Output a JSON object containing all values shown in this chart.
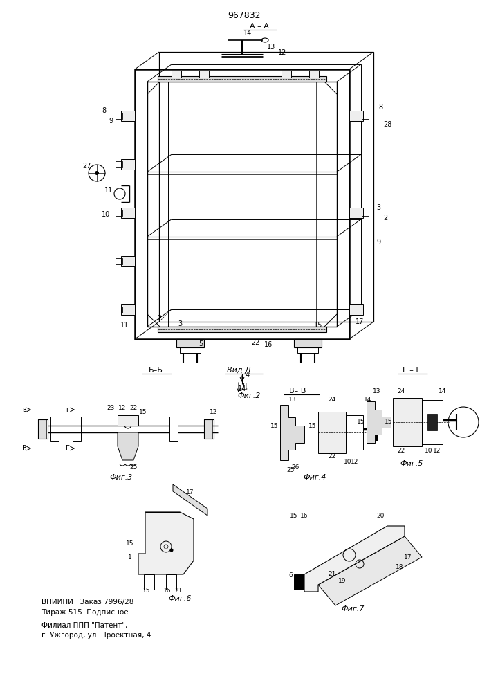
{
  "title": "967832",
  "bg_color": "#ffffff",
  "line_color": "#000000",
  "fig_width": 7.07,
  "fig_height": 10.0,
  "dpi": 100,
  "label_A_A": "A – A",
  "label_B_B": "Б–Б",
  "label_V_V": "В– В",
  "label_G_G": "Г – Г",
  "label_vid_D": "Вид Д",
  "fig2_label": "Фиг.2",
  "fig3_label": "Фиг.3",
  "fig4_label": "Фиг.4",
  "fig5_label": "Фиг.5",
  "fig6_label": "Фиг.6",
  "fig7_label": "Фиг.7",
  "footer_line1": "ВНИИПИ   Заказ 7996/28",
  "footer_line2": "Тираж 515  Подписное",
  "footer_line3": "Филиал ППП \"Патент\",",
  "footer_line4": "г. Ужгород, ул. Проектная, 4"
}
